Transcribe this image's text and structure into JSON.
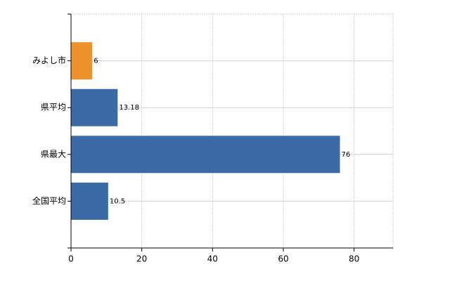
{
  "chart_data": {
    "type": "bar",
    "orientation": "horizontal",
    "categories": [
      "みよし市",
      "県平均",
      "県最大",
      "全国平均"
    ],
    "values": [
      6,
      13.18,
      76,
      10.5
    ],
    "colors": [
      "#f0922b",
      "#3b6ba5",
      "#3b6ba5",
      "#3b6ba5"
    ],
    "xlim": [
      0,
      91
    ],
    "xticks": [
      0,
      20,
      40,
      60,
      80
    ],
    "grid": true
  }
}
